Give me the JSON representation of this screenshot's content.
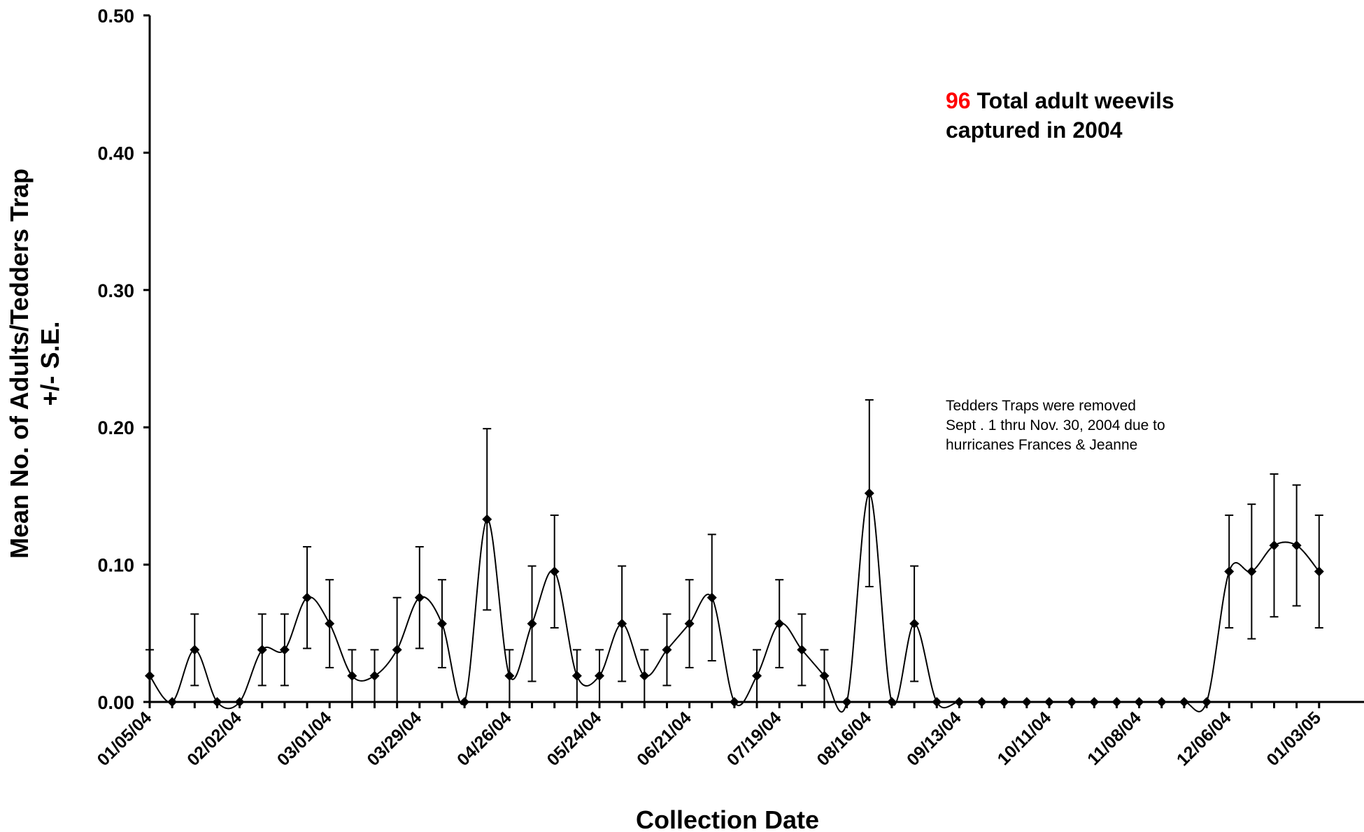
{
  "chart_data": {
    "type": "line",
    "title": "",
    "xlabel": "Collection Date",
    "ylabel_lines": [
      "Mean No. of Adults/Tedders Trap",
      "+/- S.E."
    ],
    "ylim": [
      0,
      0.5
    ],
    "yticks": [
      "0.00",
      "0.10",
      "0.20",
      "0.30",
      "0.40",
      "0.50"
    ],
    "xticks": [
      "01/05/04",
      "02/02/04",
      "03/01/04",
      "03/29/04",
      "04/26/04",
      "05/24/04",
      "06/21/04",
      "07/19/04",
      "08/16/04",
      "09/13/04",
      "10/11/04",
      "11/08/04",
      "12/06/04",
      "01/03/05"
    ],
    "x": [
      "01/05/04",
      "01/12/04",
      "01/19/04",
      "01/26/04",
      "02/02/04",
      "02/09/04",
      "02/16/04",
      "02/23/04",
      "03/01/04",
      "03/08/04",
      "03/15/04",
      "03/22/04",
      "03/29/04",
      "04/05/04",
      "04/12/04",
      "04/19/04",
      "04/26/04",
      "05/03/04",
      "05/10/04",
      "05/17/04",
      "05/24/04",
      "05/31/04",
      "06/07/04",
      "06/14/04",
      "06/21/04",
      "06/28/04",
      "07/05/04",
      "07/12/04",
      "07/19/04",
      "07/26/04",
      "08/02/04",
      "08/09/04",
      "08/16/04",
      "08/23/04",
      "08/30/04",
      "09/06/04",
      "09/13/04",
      "09/20/04",
      "09/27/04",
      "10/04/04",
      "10/11/04",
      "10/18/04",
      "10/25/04",
      "11/01/04",
      "11/08/04",
      "11/15/04",
      "11/22/04",
      "11/29/04",
      "12/06/04",
      "12/13/04",
      "12/20/04",
      "12/27/04",
      "01/03/05"
    ],
    "series": [
      {
        "name": "",
        "values": [
          0.019,
          0,
          0.038,
          0,
          0,
          0.038,
          0.038,
          0.076,
          0.057,
          0.019,
          0.019,
          0.038,
          0.076,
          0.057,
          0,
          0.133,
          0.019,
          0.057,
          0.095,
          0.019,
          0.019,
          0.057,
          0.019,
          0.038,
          0.057,
          0.076,
          0,
          0.019,
          0.057,
          0.038,
          0.019,
          0,
          0.152,
          0,
          0.057,
          0,
          0,
          0,
          0,
          0,
          0,
          0,
          0,
          0,
          0,
          0,
          0,
          0,
          0.095,
          0.095,
          0.114,
          0.114,
          0.095
        ],
        "se": [
          0.019,
          0,
          0.026,
          0,
          0,
          0.026,
          0.026,
          0.037,
          0.032,
          0.019,
          0.019,
          0.038,
          0.037,
          0.032,
          0,
          0.066,
          0.019,
          0.042,
          0.041,
          0.019,
          0.019,
          0.042,
          0.019,
          0.026,
          0.032,
          0.046,
          0,
          0.019,
          0.032,
          0.026,
          0.019,
          0,
          0.068,
          0,
          0.042,
          0,
          0,
          0,
          0,
          0,
          0,
          0,
          0,
          0,
          0,
          0,
          0,
          0,
          0.041,
          0.049,
          0.052,
          0.044,
          0.041
        ]
      }
    ],
    "legend": "none",
    "grid": false,
    "annotations": {
      "total_number": "96",
      "total_line1": " Total adult weevils",
      "total_line2": "captured in 2004",
      "note_lines": [
        "Tedders Traps were removed",
        "Sept . 1 thru Nov. 30, 2004 due to",
        "hurricanes Frances & Jeanne"
      ]
    },
    "colors": {
      "series": "#000000",
      "highlight_number": "#ff0000"
    }
  }
}
